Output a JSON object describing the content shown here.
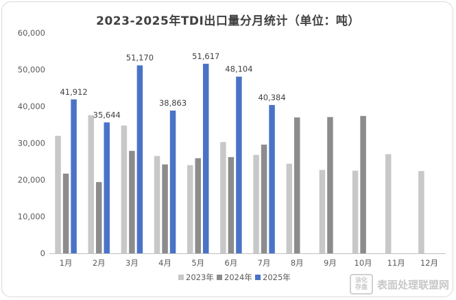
{
  "chart_data": {
    "type": "bar",
    "title": "2023-2025年TDI出口量分月统计（单位：吨）",
    "categories": [
      "1月",
      "2月",
      "3月",
      "4月",
      "5月",
      "6月",
      "7月",
      "8月",
      "9月",
      "10月",
      "11月",
      "12月"
    ],
    "series": [
      {
        "name": "2023年",
        "color": "#c8c8c8",
        "values": [
          32000,
          37600,
          34800,
          26500,
          24000,
          30300,
          26800,
          24400,
          22700,
          22500,
          27000,
          22400
        ]
      },
      {
        "name": "2024年",
        "color": "#8c8c8c",
        "values": [
          21700,
          19400,
          27900,
          24200,
          25900,
          26200,
          29600,
          37000,
          37100,
          37400,
          null,
          null
        ]
      },
      {
        "name": "2025年",
        "color": "#4a73c8",
        "values": [
          41912,
          35644,
          51170,
          38863,
          51617,
          48104,
          40384,
          null,
          null,
          null,
          null,
          null
        ]
      }
    ],
    "data_labels": {
      "series": "2025年",
      "labels": [
        "41,912",
        "35,644",
        "51,170",
        "38,863",
        "51,617",
        "48,104",
        "40,384"
      ]
    },
    "y_ticks": [
      "0",
      "10,000",
      "20,000",
      "30,000",
      "40,000",
      "50,000",
      "60,000"
    ],
    "ylim": [
      0,
      60000
    ],
    "grid": false,
    "legend_position": "bottom"
  },
  "watermark": {
    "logo_text": "涂化\n存盘",
    "text": "表面处理联盟网"
  }
}
